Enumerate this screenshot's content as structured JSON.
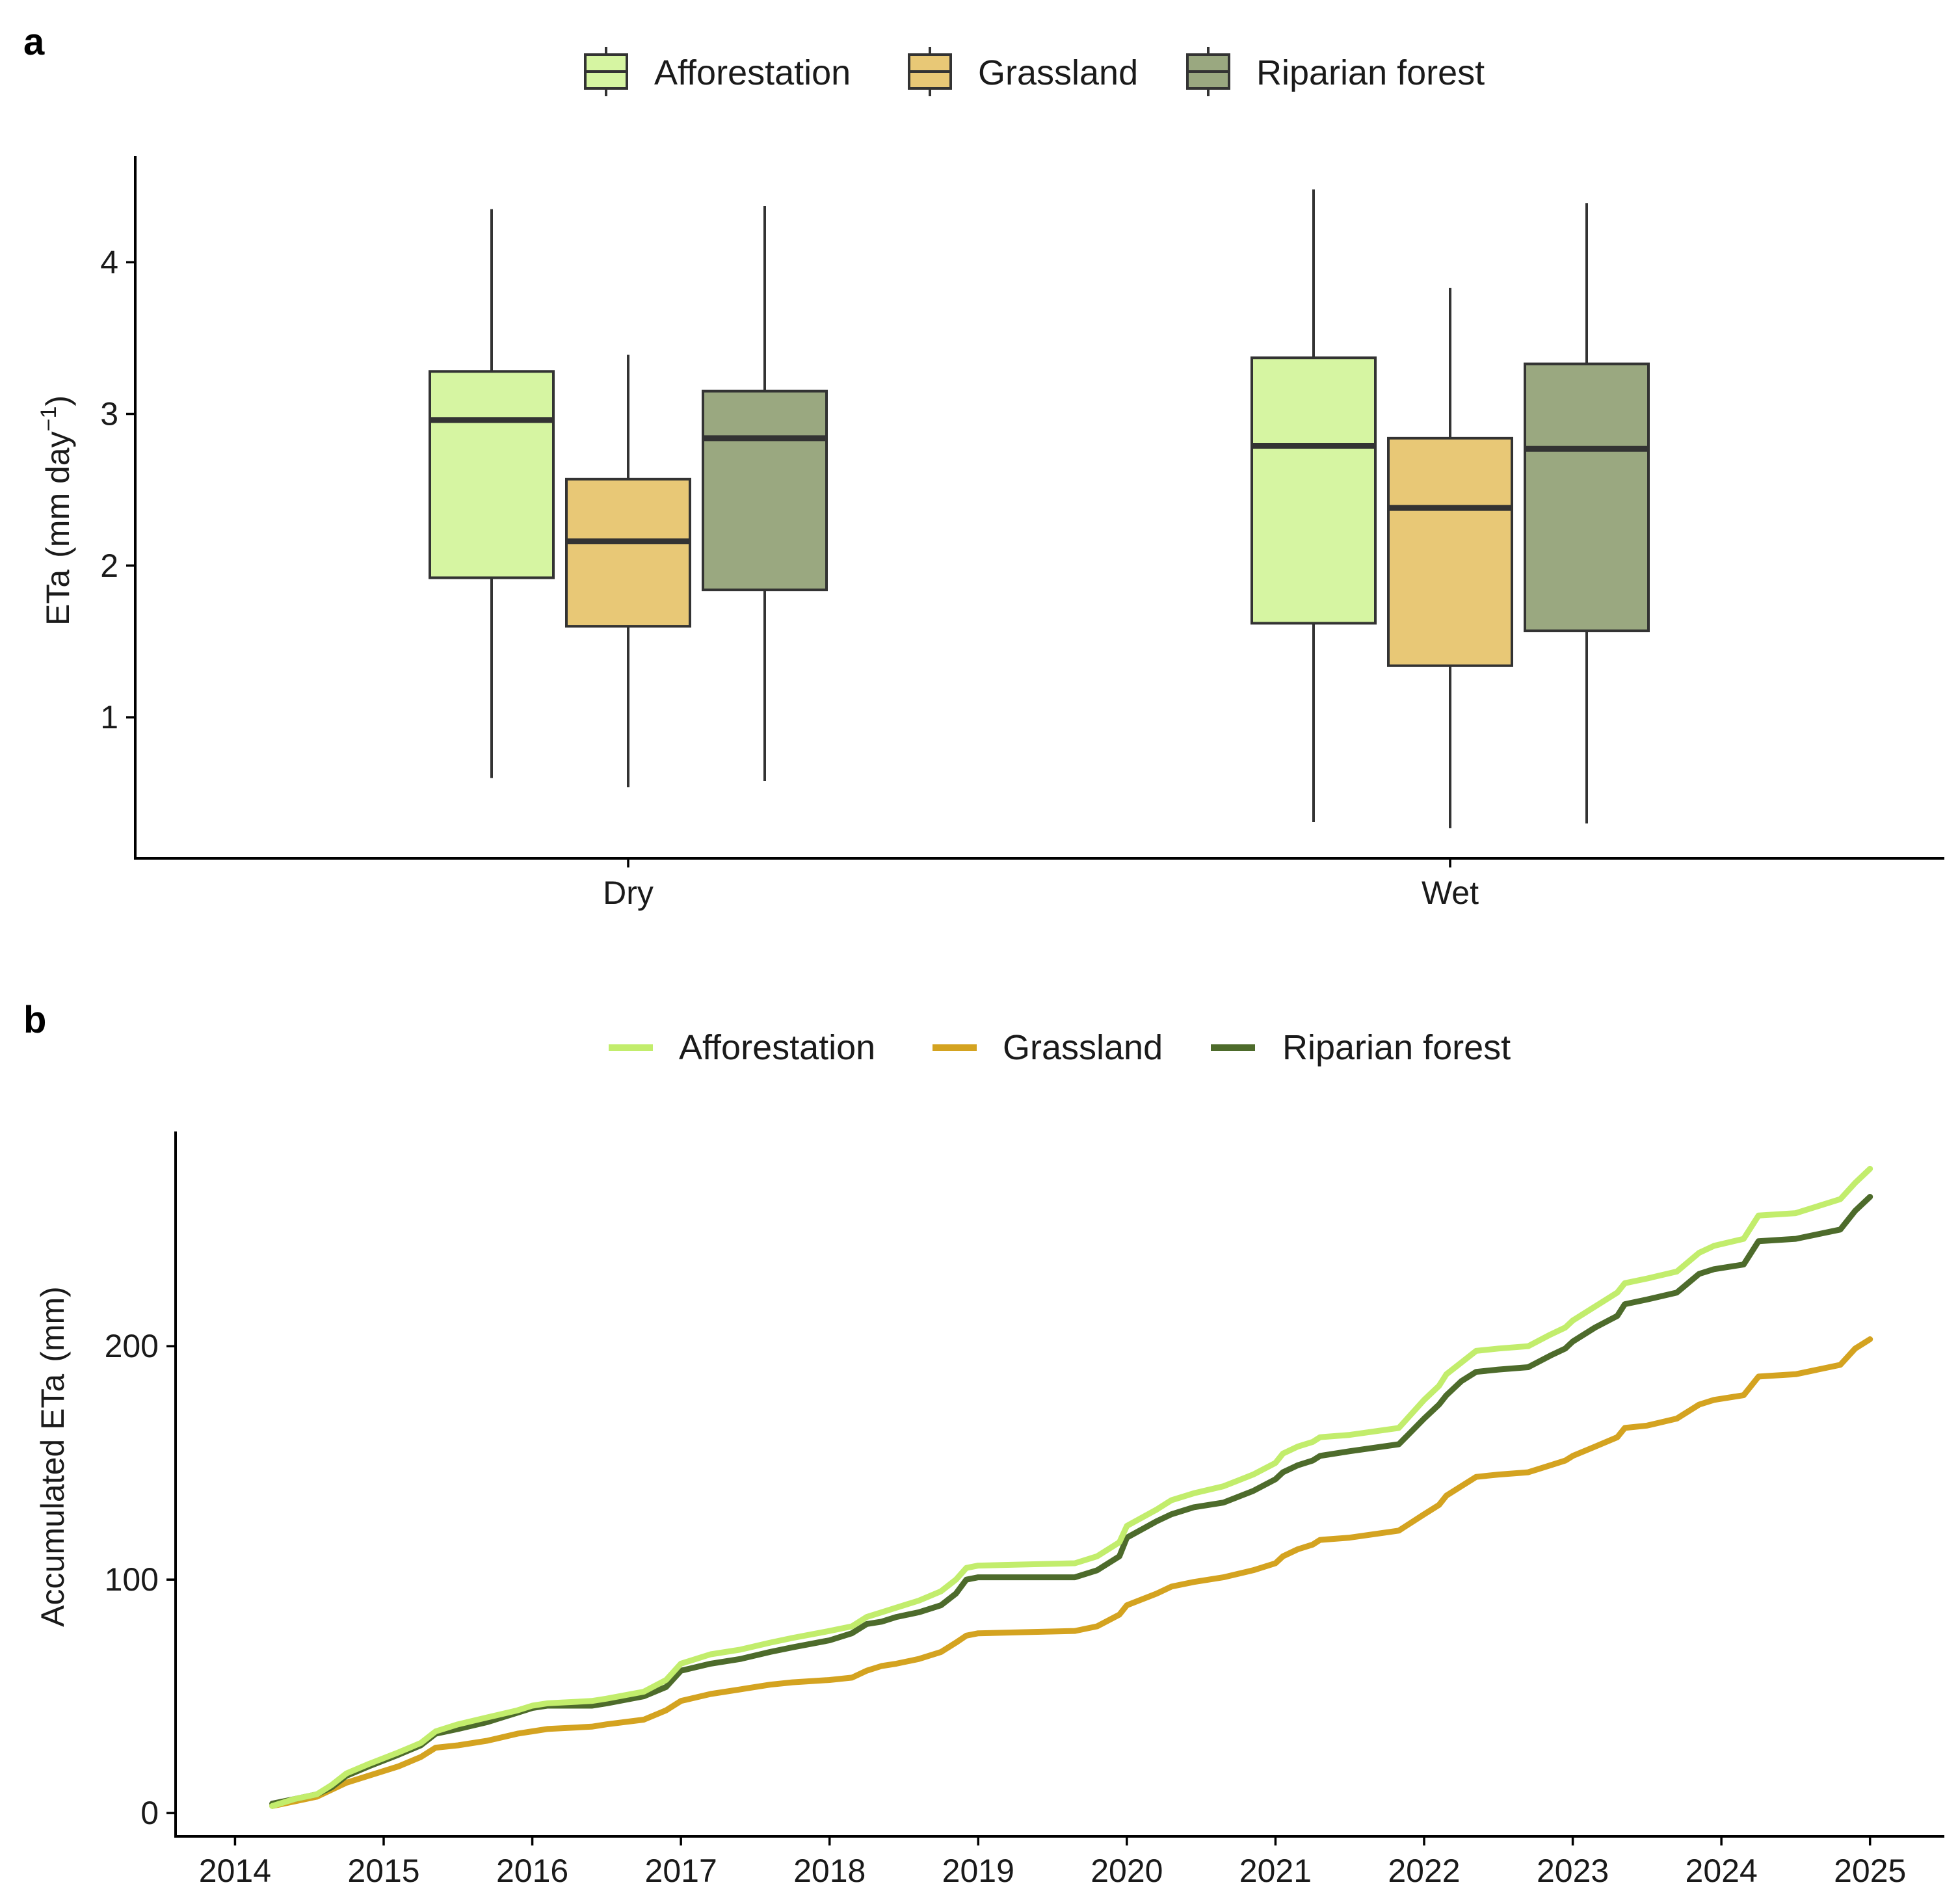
{
  "chart_data": [
    {
      "panel": "a",
      "type": "box",
      "categories": [
        "Dry",
        "Wet"
      ],
      "ylabel": "ETa (mm day⁻¹)",
      "ylim": [
        0.07,
        4.7
      ],
      "yticks": [
        1,
        2,
        3,
        4
      ],
      "legend": {
        "position": "top",
        "entries": [
          "Afforestation",
          "Grassland",
          "Riparian forest"
        ]
      },
      "series": [
        {
          "name": "Afforestation",
          "color": "#d6f5a2",
          "boxes": [
            {
              "category": "Dry",
              "min": 0.6,
              "q1": 1.92,
              "median": 2.96,
              "q3": 3.28,
              "max": 4.35
            },
            {
              "category": "Wet",
              "min": 0.31,
              "q1": 1.62,
              "median": 2.79,
              "q3": 3.37,
              "max": 4.48
            }
          ]
        },
        {
          "name": "Grassland",
          "color": "#e8c876",
          "boxes": [
            {
              "category": "Dry",
              "min": 0.54,
              "q1": 1.6,
              "median": 2.16,
              "q3": 2.57,
              "max": 3.39
            },
            {
              "category": "Wet",
              "min": 0.27,
              "q1": 1.34,
              "median": 2.38,
              "q3": 2.84,
              "max": 3.83
            }
          ]
        },
        {
          "name": "Riparian forest",
          "color": "#9aa880",
          "boxes": [
            {
              "category": "Dry",
              "min": 0.58,
              "q1": 1.84,
              "median": 2.84,
              "q3": 3.15,
              "max": 4.37
            },
            {
              "category": "Wet",
              "min": 0.3,
              "q1": 1.57,
              "median": 2.77,
              "q3": 3.33,
              "max": 4.39
            }
          ]
        }
      ]
    },
    {
      "panel": "b",
      "type": "line",
      "ylabel": "Accumulated ETa (mm)",
      "xlim": [
        2013.6,
        2025.5
      ],
      "ylim": [
        -10,
        292
      ],
      "xticks": [
        2014,
        2015,
        2016,
        2017,
        2018,
        2019,
        2020,
        2021,
        2022,
        2023,
        2024,
        2025
      ],
      "yticks": [
        0,
        100,
        200
      ],
      "legend": {
        "position": "top",
        "entries": [
          "Afforestation",
          "Grassland",
          "Riparian forest"
        ]
      },
      "x": [
        2014.25,
        2014.4,
        2014.55,
        2014.65,
        2014.75,
        2014.9,
        2015.1,
        2015.25,
        2015.35,
        2015.5,
        2015.7,
        2015.9,
        2016.0,
        2016.1,
        2016.4,
        2016.5,
        2016.75,
        2016.9,
        2017.0,
        2017.2,
        2017.4,
        2017.6,
        2017.75,
        2018.0,
        2018.15,
        2018.25,
        2018.35,
        2018.45,
        2018.6,
        2018.75,
        2018.85,
        2018.92,
        2019.0,
        2019.65,
        2019.8,
        2019.95,
        2020.0,
        2020.2,
        2020.3,
        2020.45,
        2020.65,
        2020.85,
        2021.0,
        2021.05,
        2021.15,
        2021.25,
        2021.3,
        2021.5,
        2021.83,
        2022.0,
        2022.1,
        2022.15,
        2022.25,
        2022.35,
        2022.5,
        2022.7,
        2022.85,
        2022.95,
        2023.0,
        2023.15,
        2023.3,
        2023.35,
        2023.5,
        2023.7,
        2023.85,
        2023.95,
        2024.15,
        2024.25,
        2024.5,
        2024.8,
        2024.9,
        2025.0
      ],
      "series": [
        {
          "name": "Afforestation",
          "color": "#c2ed6c",
          "values": [
            3,
            6,
            8,
            12,
            17,
            21,
            26,
            30,
            35,
            38,
            41,
            44,
            46,
            47,
            48,
            49,
            52,
            57,
            64,
            68,
            70,
            73,
            75,
            78,
            80,
            84,
            86,
            88,
            91,
            95,
            100,
            105,
            106,
            107,
            110,
            116,
            123,
            130,
            134,
            137,
            140,
            145,
            150,
            154,
            157,
            159,
            161,
            162,
            165,
            177,
            183,
            188,
            193,
            198,
            199,
            200,
            205,
            208,
            211,
            217,
            223,
            227,
            229,
            232,
            240,
            243,
            246,
            256,
            257,
            263,
            270,
            276
          ]
        },
        {
          "name": "Grassland",
          "color": "#d4a320",
          "values": [
            3,
            5,
            7,
            10,
            13,
            16,
            20,
            24,
            28,
            29,
            31,
            34,
            35,
            36,
            37,
            38,
            40,
            44,
            48,
            51,
            53,
            55,
            56,
            57,
            58,
            61,
            63,
            64,
            66,
            69,
            73,
            76,
            77,
            78,
            80,
            85,
            89,
            94,
            97,
            99,
            101,
            104,
            107,
            110,
            113,
            115,
            117,
            118,
            121,
            128,
            132,
            136,
            140,
            144,
            145,
            146,
            149,
            151,
            153,
            157,
            161,
            165,
            166,
            169,
            175,
            177,
            179,
            187,
            188,
            192,
            199,
            203
          ]
        },
        {
          "name": "Riparian forest",
          "color": "#4d6b2b",
          "values": [
            4,
            6,
            8,
            11,
            16,
            20,
            25,
            29,
            34,
            36,
            39,
            43,
            45,
            46,
            46,
            47,
            50,
            54,
            61,
            64,
            66,
            69,
            71,
            74,
            77,
            81,
            82,
            84,
            86,
            89,
            94,
            100,
            101,
            101,
            104,
            110,
            118,
            125,
            128,
            131,
            133,
            138,
            143,
            146,
            149,
            151,
            153,
            155,
            158,
            169,
            175,
            179,
            185,
            189,
            190,
            191,
            196,
            199,
            202,
            208,
            213,
            218,
            220,
            223,
            231,
            233,
            235,
            245,
            246,
            250,
            258,
            264
          ]
        }
      ]
    }
  ],
  "panel_a": {
    "label": "a",
    "legend": [
      "Afforestation",
      "Grassland",
      "Riparian forest"
    ],
    "y_title_main": "ETa",
    "y_title_units": "(mm day",
    "y_title_exp": "−1",
    "y_title_close": ")",
    "y_ticks": [
      "1",
      "2",
      "3",
      "4"
    ],
    "x_ticks": [
      "Dry",
      "Wet"
    ]
  },
  "panel_b": {
    "label": "b",
    "legend": [
      "Afforestation",
      "Grassland",
      "Riparian forest"
    ],
    "y_title_main": "Accumulated ETa",
    "y_title_units": "(mm)",
    "y_ticks": [
      "0",
      "100",
      "200"
    ],
    "x_ticks": [
      "2014",
      "2015",
      "2016",
      "2017",
      "2018",
      "2019",
      "2020",
      "2021",
      "2022",
      "2023",
      "2024",
      "2025"
    ]
  }
}
